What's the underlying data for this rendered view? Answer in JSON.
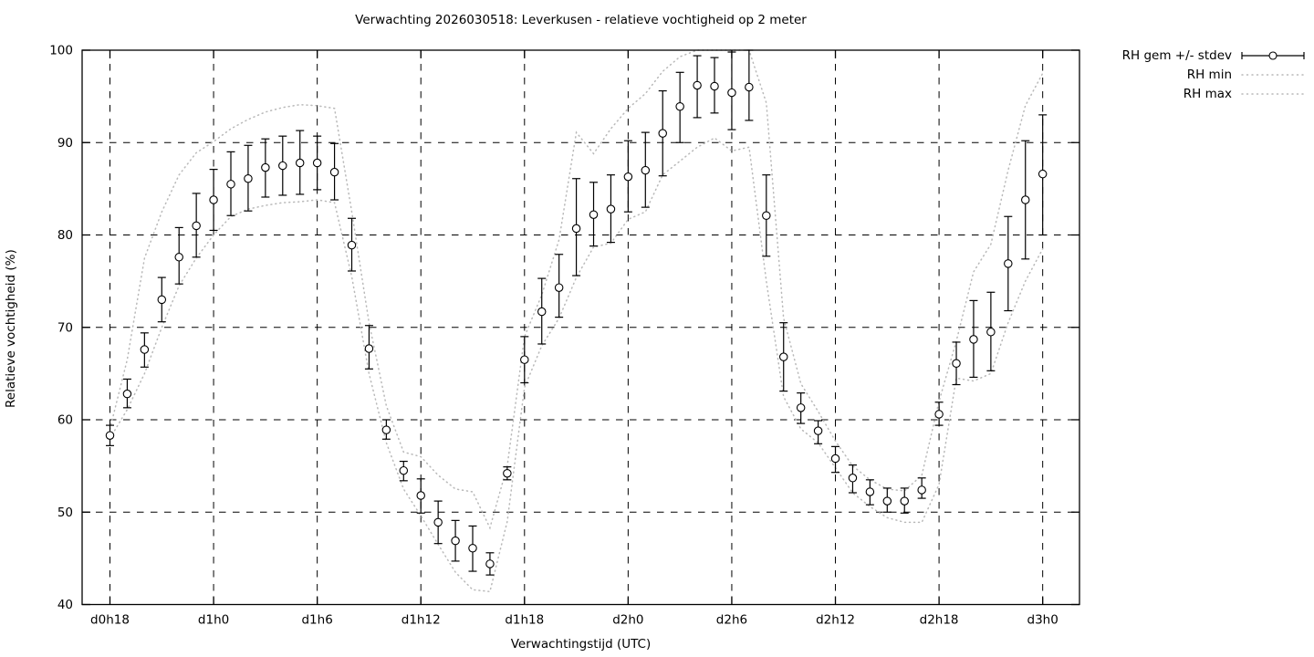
{
  "title": "Verwachting 2026030518: Leverkusen - relatieve vochtigheid op 2 meter",
  "axes": {
    "x_label": "Verwachtingstijd (UTC)",
    "y_label": "Relatieve vochtigheid (%)",
    "y_ticks": [
      40,
      50,
      60,
      70,
      80,
      90,
      100
    ],
    "x_tick_hours": [
      18,
      24,
      30,
      36,
      42,
      48,
      54,
      60,
      66,
      72
    ],
    "x_tick_labels": [
      "d0h18",
      "d1h0",
      "d1h6",
      "d1h12",
      "d1h18",
      "d2h0",
      "d2h6",
      "d2h12",
      "d2h18",
      "d3h0"
    ]
  },
  "legend": {
    "stdev_label": "RH gem +/- stdev",
    "min_label": "RH min",
    "max_label": "RH max"
  },
  "colors": {
    "foreground": "#000000",
    "envelope_gray": "#b9b9b9",
    "background": "#ffffff"
  },
  "chart_data": {
    "type": "scatter",
    "title": "Verwachting 2026030518: Leverkusen - relatieve vochtigheid op 2 meter",
    "xlabel": "Verwachtingstijd (UTC)",
    "ylabel": "Relatieve vochtigheid (%)",
    "ylim": [
      40,
      100
    ],
    "xlim_hours": [
      16.4,
      74.1
    ],
    "grid": true,
    "legend_position": "outside-top-right",
    "x_hours": [
      18,
      19,
      20,
      21,
      22,
      23,
      24,
      25,
      26,
      27,
      28,
      29,
      30,
      31,
      32,
      33,
      34,
      35,
      36,
      37,
      38,
      39,
      40,
      41,
      42,
      43,
      44,
      45,
      46,
      47,
      48,
      49,
      50,
      51,
      52,
      53,
      54,
      55,
      56,
      57,
      58,
      59,
      60,
      61,
      62,
      63,
      64,
      65,
      66,
      67,
      68,
      69,
      70,
      71,
      72
    ],
    "series": [
      {
        "name": "RH gem +/- stdev",
        "style": "points-with-errorbars",
        "mean": [
          58.3,
          62.8,
          67.6,
          73.0,
          77.6,
          81.0,
          83.8,
          85.5,
          86.1,
          87.3,
          87.5,
          87.8,
          87.8,
          86.8,
          78.9,
          67.7,
          58.9,
          54.5,
          51.8,
          48.9,
          46.9,
          46.1,
          44.4,
          54.2,
          66.5,
          71.7,
          74.3,
          80.7,
          82.2,
          82.8,
          86.3,
          87.0,
          91.0,
          93.9,
          96.2,
          96.1,
          95.4,
          96.0,
          82.1,
          66.8,
          61.3,
          58.8,
          55.8,
          53.7,
          52.2,
          51.2,
          51.2,
          52.4,
          60.6,
          66.1,
          68.7,
          69.5,
          76.9,
          83.8,
          86.6
        ],
        "err_lo": [
          57.2,
          61.3,
          65.7,
          70.6,
          74.7,
          77.6,
          80.5,
          82.1,
          82.6,
          84.1,
          84.3,
          84.4,
          84.9,
          83.8,
          76.1,
          65.5,
          57.9,
          53.4,
          49.9,
          46.6,
          44.7,
          43.6,
          43.2,
          53.5,
          64.0,
          68.2,
          71.1,
          75.6,
          78.8,
          79.2,
          82.5,
          83.0,
          86.4,
          90.0,
          92.7,
          93.2,
          91.4,
          92.4,
          77.7,
          63.1,
          59.6,
          57.4,
          54.3,
          52.1,
          50.8,
          50.0,
          49.9,
          51.5,
          59.4,
          63.8,
          64.6,
          65.3,
          71.8,
          77.4,
          80.0
        ],
        "err_hi": [
          59.4,
          64.4,
          69.4,
          75.4,
          80.8,
          84.5,
          87.1,
          89.0,
          89.7,
          90.4,
          90.7,
          91.3,
          90.7,
          89.9,
          81.8,
          70.2,
          60.0,
          55.5,
          53.6,
          51.2,
          49.1,
          48.5,
          45.6,
          54.9,
          69.0,
          75.3,
          77.9,
          86.1,
          85.7,
          86.5,
          90.2,
          91.1,
          95.6,
          97.6,
          99.4,
          99.2,
          99.8,
          100.0,
          86.5,
          70.5,
          62.9,
          59.9,
          57.1,
          55.1,
          53.5,
          52.6,
          52.6,
          53.7,
          61.9,
          68.4,
          72.9,
          73.8,
          82.0,
          90.2,
          93.0
        ]
      },
      {
        "name": "RH min",
        "style": "dotted-line",
        "values": [
          58.0,
          61.1,
          65.0,
          70.0,
          74.5,
          77.5,
          80.0,
          82.0,
          82.8,
          83.2,
          83.5,
          83.6,
          83.8,
          83.5,
          75.5,
          65.0,
          57.5,
          52.5,
          49.6,
          46.5,
          43.5,
          41.6,
          41.4,
          49.0,
          63.5,
          68.0,
          71.0,
          75.4,
          78.7,
          79.1,
          81.7,
          82.5,
          86.5,
          88.0,
          89.5,
          90.5,
          89.1,
          89.5,
          75.0,
          62.5,
          59.0,
          57.5,
          54.8,
          52.1,
          50.6,
          49.4,
          48.9,
          48.9,
          53.0,
          64.5,
          64.2,
          65.0,
          70.5,
          75.0,
          78.5
        ]
      },
      {
        "name": "RH max",
        "style": "dotted-line",
        "values": [
          59.0,
          66.5,
          77.5,
          82.5,
          86.5,
          88.9,
          90.1,
          91.5,
          92.5,
          93.3,
          93.8,
          94.1,
          94.0,
          93.7,
          82.5,
          70.5,
          61.5,
          56.5,
          56.0,
          54.0,
          52.5,
          52.2,
          48.3,
          55.0,
          69.0,
          73.5,
          79.5,
          91.1,
          88.8,
          91.5,
          93.7,
          95.3,
          97.7,
          99.3,
          100,
          100,
          100,
          100,
          94.3,
          71.0,
          63.9,
          60.9,
          57.7,
          55.0,
          53.5,
          52.5,
          52.3,
          54.0,
          62.0,
          68.5,
          76.0,
          79.0,
          87.0,
          94.0,
          97.5
        ]
      }
    ]
  }
}
